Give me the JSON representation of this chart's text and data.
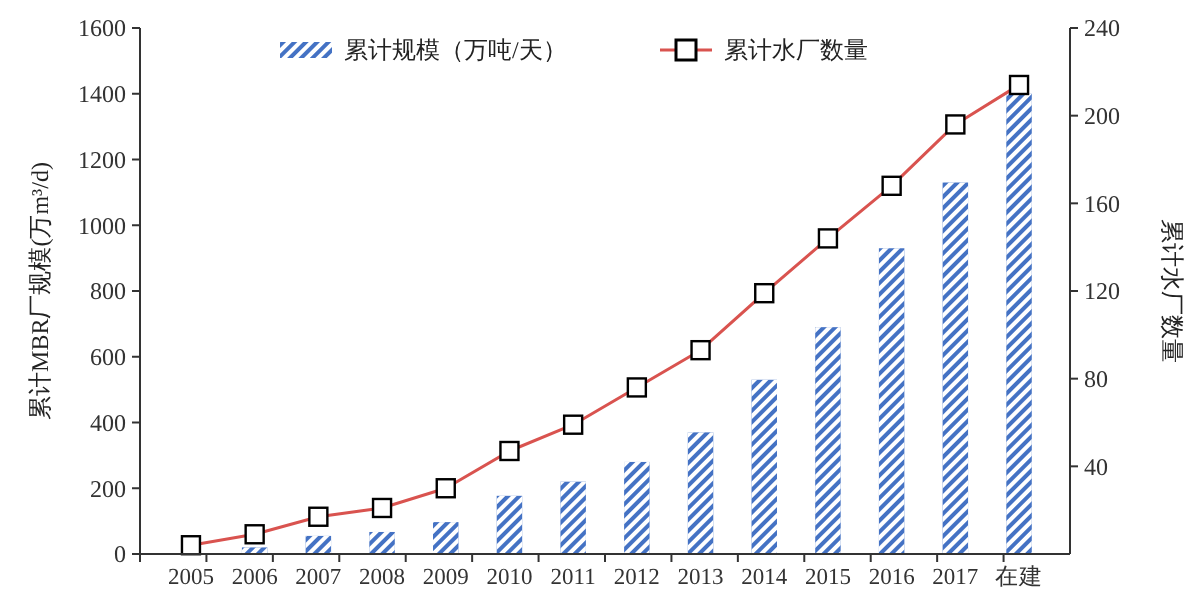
{
  "chart_data": {
    "type": "bar",
    "categories": [
      "2005",
      "2006",
      "2007",
      "2008",
      "2009",
      "2010",
      "2011",
      "2012",
      "2013",
      "2014",
      "2015",
      "2016",
      "2017",
      "在建"
    ],
    "ylabel": "累计MBR厂规模(万m³/d)",
    "y2label": "累计水厂数量",
    "ylim": [
      0,
      1600
    ],
    "yticks": [
      0,
      200,
      400,
      600,
      800,
      1000,
      1200,
      1400,
      1600
    ],
    "y2lim": [
      0,
      240
    ],
    "y2ticks": [
      40,
      80,
      120,
      160,
      200,
      240
    ],
    "legend": "top",
    "grid": false,
    "marker": "square",
    "line_style": "solid",
    "series": [
      {
        "name": "累计规模（万吨/天）",
        "color": "#4472c4",
        "values": [
          null,
          20,
          55,
          67,
          97,
          177,
          220,
          280,
          370,
          530,
          690,
          930,
          1130,
          1400
        ]
      },
      {
        "name": "累计水厂数量",
        "type": "line",
        "axis": "y2",
        "color": "#d9534f",
        "values": [
          4,
          9,
          17,
          21,
          30,
          47,
          59,
          76,
          93,
          119,
          144,
          168,
          196,
          214
        ]
      }
    ]
  }
}
